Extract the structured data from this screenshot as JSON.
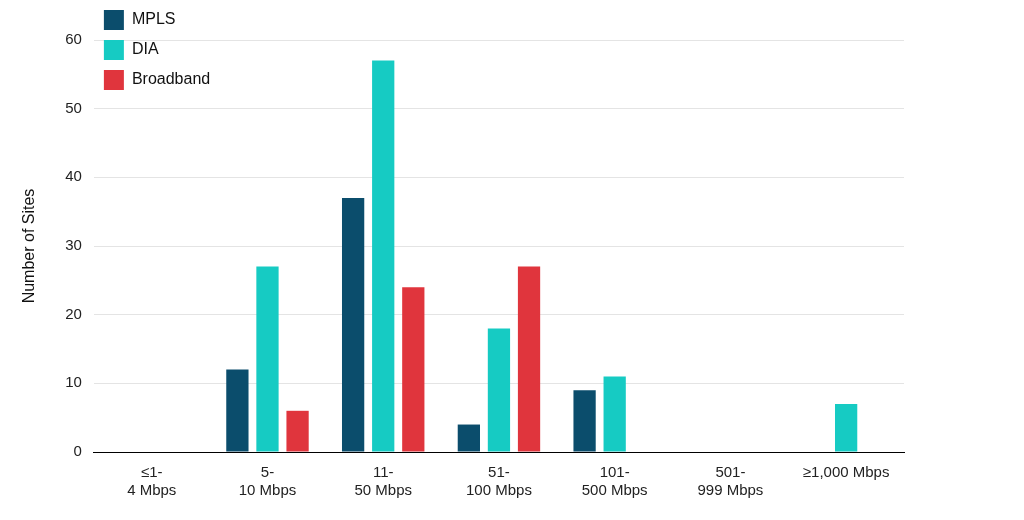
{
  "chart_data": {
    "type": "bar",
    "ylabel": "Number of Sites",
    "categories": [
      "≤1-\n4 Mbps",
      "5-\n10 Mbps",
      "11-\n50 Mbps",
      "51-\n100 Mbps",
      "101-\n500 Mbps",
      "501-\n999 Mbps",
      "≥1,000 Mbps"
    ],
    "series": [
      {
        "name": "MPLS",
        "color": "#0b4d6c",
        "values": [
          0,
          12,
          37,
          4,
          9,
          0,
          0
        ]
      },
      {
        "name": "DIA",
        "color": "#16cbc3",
        "values": [
          0,
          27,
          57,
          18,
          11,
          0,
          7
        ]
      },
      {
        "name": "Broadband",
        "color": "#e0353d",
        "values": [
          0,
          6,
          24,
          27,
          0,
          0,
          0
        ]
      }
    ],
    "ylim": [
      0,
      60
    ],
    "yticks": [
      0,
      10,
      20,
      30,
      40,
      50,
      60
    ],
    "grid": true,
    "legend": "upper left"
  }
}
